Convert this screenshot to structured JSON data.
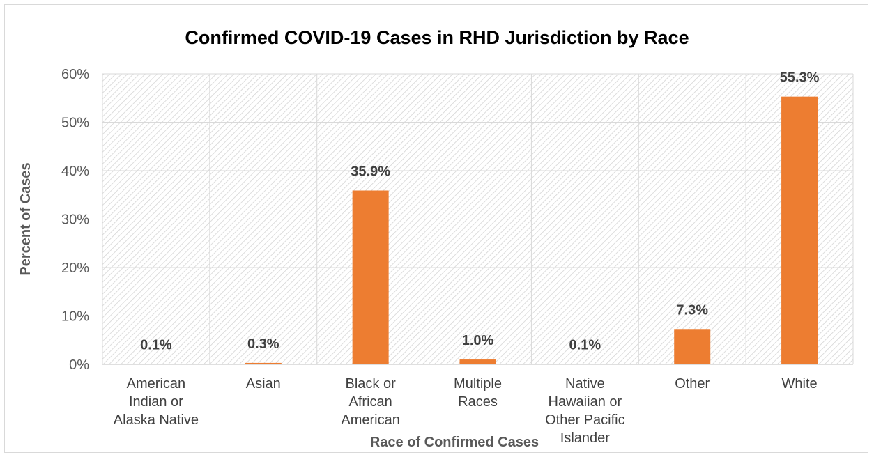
{
  "chart_data": {
    "type": "bar",
    "title": "Confirmed COVID-19 Cases in RHD Jurisdiction by Race",
    "xlabel": "Race of Confirmed Cases",
    "ylabel": "Percent of Cases",
    "categories": [
      [
        "American",
        "Indian or",
        "Alaska Native"
      ],
      [
        "Asian"
      ],
      [
        "Black or",
        "African",
        "American"
      ],
      [
        "Multiple",
        "Races"
      ],
      [
        "Native",
        "Hawaiian or",
        "Other Pacific",
        "Islander"
      ],
      [
        "Other"
      ],
      [
        "White"
      ]
    ],
    "values": [
      0.1,
      0.3,
      35.9,
      1.0,
      0.1,
      7.3,
      55.3
    ],
    "data_labels": [
      "0.1%",
      "0.3%",
      "35.9%",
      "1.0%",
      "0.1%",
      "7.3%",
      "55.3%"
    ],
    "ylim": [
      0,
      60
    ],
    "yticks": [
      "0%",
      "10%",
      "20%",
      "30%",
      "40%",
      "50%",
      "60%"
    ],
    "grid": true,
    "plot_area_pattern": "diagonal-hatch",
    "bar_color": "#ED7D31"
  }
}
